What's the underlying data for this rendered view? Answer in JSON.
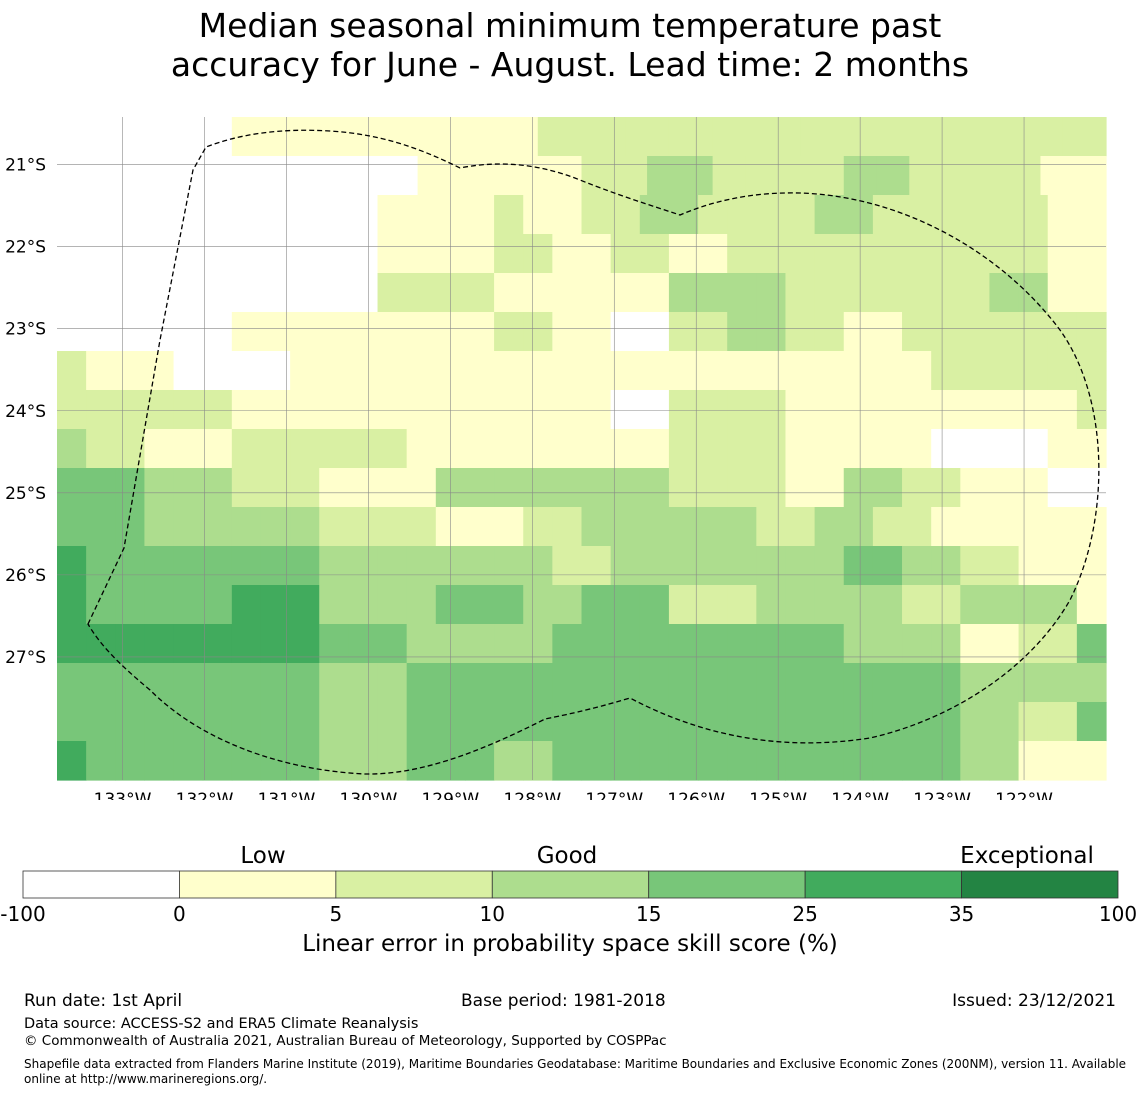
{
  "title_line1": "Median seasonal minimum temperature past",
  "title_line2": "accuracy for June - August. Lead time: 2 months",
  "map": {
    "lat_labels": [
      "21°S",
      "22°S",
      "23°S",
      "24°S",
      "25°S",
      "26°S",
      "27°S"
    ],
    "lat_values": [
      -21,
      -22,
      -23,
      -24,
      -25,
      -26,
      -27
    ],
    "lon_labels": [
      "133°W",
      "132°W",
      "131°W",
      "130°W",
      "129°W",
      "128°W",
      "127°W",
      "126°W",
      "125°W",
      "124°W",
      "123°W",
      "122°W"
    ],
    "lon_values": [
      -133,
      -132,
      -131,
      -130,
      -129,
      -128,
      -127,
      -126,
      -125,
      -124,
      -123,
      -122
    ],
    "lon_range": [
      -133.8,
      -121.0
    ],
    "lat_range": [
      -28.5,
      -20.42
    ],
    "grid_note": "skill class per cell (0=below 0, 1=0-5, 2=5-10, 3=10-15, 4=15-25, 5=25-35, 6=35-100), rows north to south",
    "skill_classes": [
      [
        0,
        0,
        0,
        0,
        1,
        1,
        1,
        1,
        1,
        1,
        1,
        2,
        2,
        2,
        2,
        2,
        2,
        2,
        2,
        2,
        2,
        2,
        2,
        2
      ],
      [
        0,
        0,
        0,
        0,
        0,
        0,
        0,
        0,
        0,
        0,
        0,
        1,
        1,
        1,
        1,
        1,
        2,
        2,
        3,
        3,
        2,
        2,
        2,
        2,
        3,
        3,
        2,
        2,
        2,
        2,
        1,
        1
      ],
      [
        0,
        0,
        0,
        0,
        0,
        0,
        0,
        0,
        0,
        0,
        0,
        1,
        1,
        1,
        1,
        2,
        1,
        1,
        2,
        2,
        3,
        3,
        2,
        2,
        2,
        2,
        3,
        3,
        2,
        2,
        2,
        2,
        2,
        2,
        1,
        1
      ],
      [
        0,
        0,
        0,
        0,
        0,
        0,
        0,
        0,
        0,
        0,
        0,
        1,
        1,
        1,
        1,
        2,
        2,
        1,
        1,
        2,
        2,
        1,
        1,
        2,
        2,
        2,
        2,
        2,
        2,
        2,
        2,
        2,
        2,
        2,
        1,
        1
      ],
      [
        0,
        0,
        0,
        0,
        0,
        0,
        0,
        0,
        0,
        0,
        0,
        2,
        2,
        2,
        2,
        1,
        1,
        1,
        1,
        1,
        1,
        3,
        3,
        3,
        3,
        2,
        2,
        2,
        2,
        2,
        2,
        2,
        3,
        3,
        1,
        1
      ],
      [
        0,
        0,
        0,
        0,
        0,
        0,
        1,
        1,
        1,
        1,
        1,
        1,
        1,
        1,
        1,
        2,
        2,
        1,
        1,
        0,
        0,
        2,
        2,
        3,
        3,
        2,
        2,
        1,
        1,
        2,
        2,
        2,
        2,
        2,
        2,
        2
      ],
      [
        2,
        1,
        1,
        1,
        0,
        0,
        0,
        0,
        1,
        1,
        1,
        1,
        1,
        1,
        1,
        1,
        1,
        1,
        1,
        1,
        1,
        1,
        1,
        1,
        1,
        1,
        1,
        1,
        1,
        1,
        2,
        2,
        2,
        2,
        2,
        2
      ],
      [
        2,
        2,
        2,
        2,
        2,
        2,
        1,
        1,
        1,
        1,
        1,
        1,
        1,
        1,
        1,
        1,
        1,
        1,
        1,
        0,
        0,
        2,
        2,
        2,
        2,
        1,
        1,
        1,
        1,
        1,
        1,
        1,
        1,
        1,
        1,
        2
      ],
      [
        3,
        2,
        2,
        1,
        1,
        1,
        2,
        2,
        2,
        2,
        2,
        2,
        1,
        1,
        1,
        1,
        1,
        1,
        1,
        1,
        1,
        2,
        2,
        2,
        2,
        1,
        1,
        1,
        1,
        1,
        0,
        0,
        0,
        0,
        1,
        1
      ],
      [
        4,
        4,
        4,
        3,
        3,
        3,
        2,
        2,
        2,
        1,
        1,
        1,
        1,
        3,
        3,
        3,
        3,
        3,
        3,
        3,
        3,
        2,
        2,
        2,
        2,
        1,
        1,
        3,
        3,
        2,
        2,
        1,
        1,
        1,
        0,
        0
      ],
      [
        4,
        4,
        4,
        3,
        3,
        3,
        3,
        3,
        3,
        2,
        2,
        2,
        2,
        1,
        1,
        1,
        2,
        2,
        3,
        3,
        3,
        3,
        3,
        3,
        2,
        2,
        3,
        3,
        2,
        2,
        1,
        1,
        1,
        1,
        1,
        1
      ],
      [
        5,
        4,
        4,
        4,
        4,
        4,
        4,
        4,
        4,
        3,
        3,
        3,
        3,
        3,
        3,
        3,
        3,
        2,
        2,
        3,
        3,
        3,
        3,
        3,
        3,
        3,
        3,
        4,
        4,
        3,
        3,
        2,
        2,
        1,
        1,
        1
      ],
      [
        5,
        4,
        4,
        4,
        4,
        4,
        5,
        5,
        5,
        3,
        3,
        3,
        3,
        4,
        4,
        4,
        3,
        3,
        4,
        4,
        4,
        2,
        2,
        2,
        3,
        3,
        3,
        3,
        3,
        2,
        2,
        3,
        3,
        3,
        3,
        1
      ],
      [
        5,
        5,
        5,
        5,
        5,
        5,
        5,
        5,
        5,
        4,
        4,
        4,
        3,
        3,
        3,
        3,
        3,
        4,
        4,
        4,
        4,
        4,
        4,
        4,
        4,
        4,
        4,
        3,
        3,
        3,
        3,
        1,
        1,
        2,
        2,
        4
      ],
      [
        4,
        4,
        4,
        4,
        4,
        4,
        4,
        4,
        4,
        3,
        3,
        3,
        4,
        4,
        4,
        4,
        4,
        4,
        4,
        4,
        4,
        4,
        4,
        4,
        4,
        4,
        4,
        4,
        4,
        4,
        4,
        3,
        3,
        3,
        3,
        3
      ],
      [
        4,
        4,
        4,
        4,
        4,
        4,
        4,
        4,
        4,
        3,
        3,
        3,
        4,
        4,
        4,
        4,
        4,
        4,
        4,
        4,
        4,
        4,
        4,
        4,
        4,
        4,
        4,
        4,
        4,
        4,
        4,
        3,
        3,
        2,
        2,
        4
      ],
      [
        5,
        4,
        4,
        4,
        4,
        4,
        4,
        4,
        4,
        3,
        3,
        3,
        4,
        4,
        4,
        3,
        3,
        4,
        4,
        4,
        4,
        4,
        4,
        4,
        4,
        4,
        4,
        4,
        4,
        4,
        4,
        3,
        3,
        1,
        1,
        1
      ]
    ]
  },
  "legend": {
    "low_label": "Low",
    "good_label": "Good",
    "exceptional_label": "Exceptional",
    "ticks": [
      "-100",
      "0",
      "5",
      "10",
      "15",
      "25",
      "35",
      "100"
    ],
    "colors": [
      "#ffffff",
      "#ffffcc",
      "#d9f0a3",
      "#addd8e",
      "#78c679",
      "#41ab5d",
      "#238443"
    ],
    "axis_label": "Linear error in probability space skill score (%)"
  },
  "footer": {
    "run_date": "Run date: 1st April",
    "base_period": "Base period: 1981-2018",
    "issued": "Issued: 23/12/2021",
    "data_source": "Data source: ACCESS-S2 and ERA5 Climate Reanalysis",
    "copyright": "© Commonwealth of Australia 2021, Australian Bureau of Meteorology, Supported by COSPPac",
    "shapefile": "Shapefile data extracted from Flanders Marine Institute (2019), Maritime Boundaries Geodatabase: Maritime Boundaries and Exclusive Economic Zones (200NM), version 11. Available online at http://www.marineregions.org/."
  }
}
